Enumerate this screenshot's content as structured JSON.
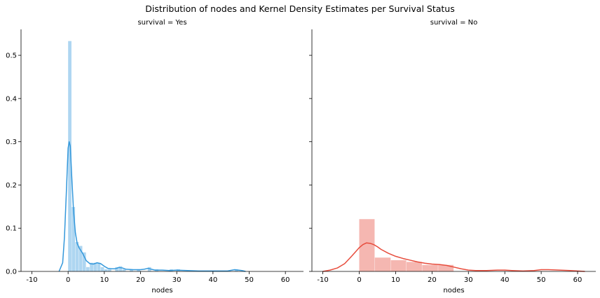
{
  "chart_data": {
    "type": "bar",
    "title": "Distribution of nodes and Kernel Density Estimates per Survival Status",
    "xlim": [
      -13,
      65
    ],
    "ylim": [
      0,
      0.56
    ],
    "x_ticks": [
      -10,
      0,
      10,
      20,
      30,
      40,
      50,
      60
    ],
    "y_ticks": [
      0.0,
      0.1,
      0.2,
      0.3,
      0.4,
      0.5
    ],
    "y_tick_labels": [
      "0.0",
      "0.1",
      "0.2",
      "0.3",
      "0.4",
      "0.5"
    ],
    "grid": false,
    "panels": [
      {
        "title": "survival = Yes",
        "xlabel": "nodes",
        "hist_color": "#3498db",
        "kde_color": "#3498db",
        "hist": [
          {
            "x0": 0.0,
            "x1": 1.0,
            "y": 0.533
          },
          {
            "x0": 1.0,
            "x1": 2.0,
            "y": 0.149
          },
          {
            "x0": 2.0,
            "x1": 3.0,
            "y": 0.068
          },
          {
            "x0": 3.0,
            "x1": 4.0,
            "y": 0.059
          },
          {
            "x0": 4.0,
            "x1": 5.0,
            "y": 0.044
          },
          {
            "x0": 5.0,
            "x1": 6.0,
            "y": 0.01
          },
          {
            "x0": 6.0,
            "x1": 7.0,
            "y": 0.02
          },
          {
            "x0": 7.0,
            "x1": 8.0,
            "y": 0.02
          },
          {
            "x0": 8.0,
            "x1": 9.0,
            "y": 0.02
          },
          {
            "x0": 9.0,
            "x1": 10.0,
            "y": 0.01
          },
          {
            "x0": 10.0,
            "x1": 11.0,
            "y": 0.005
          },
          {
            "x0": 11.0,
            "x1": 12.0,
            "y": 0.005
          },
          {
            "x0": 13.0,
            "x1": 14.0,
            "y": 0.01
          },
          {
            "x0": 14.0,
            "x1": 15.0,
            "y": 0.012
          },
          {
            "x0": 15.0,
            "x1": 16.0,
            "y": 0.005
          },
          {
            "x0": 17.0,
            "x1": 18.0,
            "y": 0.005
          },
          {
            "x0": 19.0,
            "x1": 20.0,
            "y": 0.005
          },
          {
            "x0": 22.0,
            "x1": 23.0,
            "y": 0.01
          },
          {
            "x0": 24.0,
            "x1": 25.0,
            "y": 0.005
          },
          {
            "x0": 28.0,
            "x1": 29.0,
            "y": 0.005
          },
          {
            "x0": 30.0,
            "x1": 31.0,
            "y": 0.005
          },
          {
            "x0": 46.0,
            "x1": 47.0,
            "y": 0.005
          }
        ],
        "kde": {
          "x": [
            -2.5,
            -1.5,
            -1.0,
            -0.5,
            0.0,
            0.3,
            0.6,
            1.0,
            1.5,
            2.0,
            2.5,
            3.0,
            4.0,
            5.0,
            6.0,
            7.0,
            8.0,
            9.0,
            10.0,
            11.0,
            12.0,
            13.0,
            14.0,
            15.0,
            16.0,
            18.0,
            20.0,
            21.0,
            22.0,
            23.0,
            24.0,
            26.0,
            28.0,
            30.0,
            33.0,
            36.0,
            40.0,
            44.0,
            46.0,
            48.0,
            49.0
          ],
          "y": [
            0.0,
            0.02,
            0.08,
            0.18,
            0.285,
            0.3,
            0.29,
            0.22,
            0.14,
            0.09,
            0.065,
            0.055,
            0.042,
            0.025,
            0.018,
            0.017,
            0.02,
            0.018,
            0.012,
            0.007,
            0.006,
            0.006,
            0.009,
            0.008,
            0.005,
            0.004,
            0.004,
            0.005,
            0.007,
            0.005,
            0.003,
            0.003,
            0.002,
            0.003,
            0.002,
            0.001,
            0.001,
            0.001,
            0.004,
            0.002,
            0.0
          ]
        }
      },
      {
        "title": "survival = No",
        "xlabel": "nodes",
        "hist_color": "#e74c3c",
        "kde_color": "#e74c3c",
        "hist": [
          {
            "x0": 0.0,
            "x1": 4.3,
            "y": 0.121
          },
          {
            "x0": 4.3,
            "x1": 8.7,
            "y": 0.032
          },
          {
            "x0": 8.7,
            "x1": 13.0,
            "y": 0.026
          },
          {
            "x0": 13.0,
            "x1": 17.3,
            "y": 0.022
          },
          {
            "x0": 17.3,
            "x1": 21.7,
            "y": 0.015
          },
          {
            "x0": 21.7,
            "x1": 26.0,
            "y": 0.015
          }
        ],
        "kde": {
          "x": [
            -10,
            -8,
            -6,
            -4,
            -2,
            0,
            1,
            2,
            3,
            4,
            5,
            6,
            8,
            10,
            12,
            14,
            16,
            18,
            20,
            22,
            24,
            26,
            28,
            30,
            32,
            35,
            38,
            40,
            42,
            45,
            48,
            50,
            52,
            55,
            58,
            60,
            62
          ],
          "y": [
            0.0,
            0.003,
            0.008,
            0.018,
            0.036,
            0.055,
            0.062,
            0.066,
            0.065,
            0.062,
            0.057,
            0.051,
            0.042,
            0.035,
            0.03,
            0.026,
            0.022,
            0.019,
            0.017,
            0.016,
            0.014,
            0.01,
            0.006,
            0.003,
            0.002,
            0.002,
            0.003,
            0.003,
            0.002,
            0.001,
            0.002,
            0.004,
            0.004,
            0.003,
            0.002,
            0.001,
            0.0
          ]
        }
      }
    ]
  }
}
